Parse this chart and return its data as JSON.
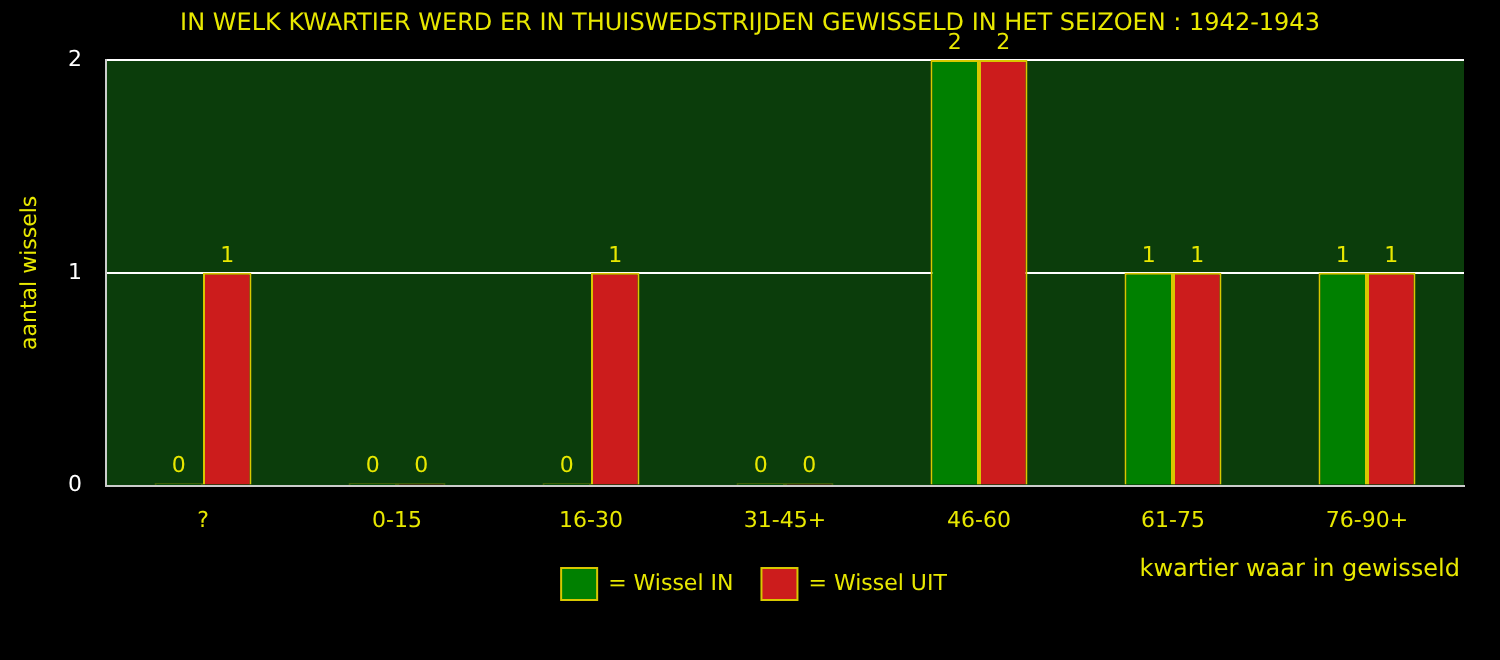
{
  "chart_data": {
    "type": "bar",
    "title": "IN WELK KWARTIER WERD ER IN THUISWEDSTRIJDEN GEWISSELD IN HET SEIZOEN : 1942-1943",
    "ylabel": "aantal wissels",
    "xlabel": "kwartier waar in gewisseld",
    "categories": [
      "?",
      "0-15",
      "16-30",
      "31-45+",
      "46-60",
      "61-75",
      "76-90+"
    ],
    "series": [
      {
        "name": "= Wissel IN",
        "color": "#008000",
        "values": [
          0,
          0,
          0,
          0,
          2,
          1,
          1
        ]
      },
      {
        "name": "= Wissel UIT",
        "color": "#cc1c1c",
        "values": [
          1,
          0,
          1,
          0,
          2,
          1,
          1
        ]
      }
    ],
    "ylim": [
      0,
      2
    ],
    "yticks": [
      0,
      1,
      2
    ],
    "grid": "y",
    "legend": "bottom",
    "data_labels": true
  }
}
